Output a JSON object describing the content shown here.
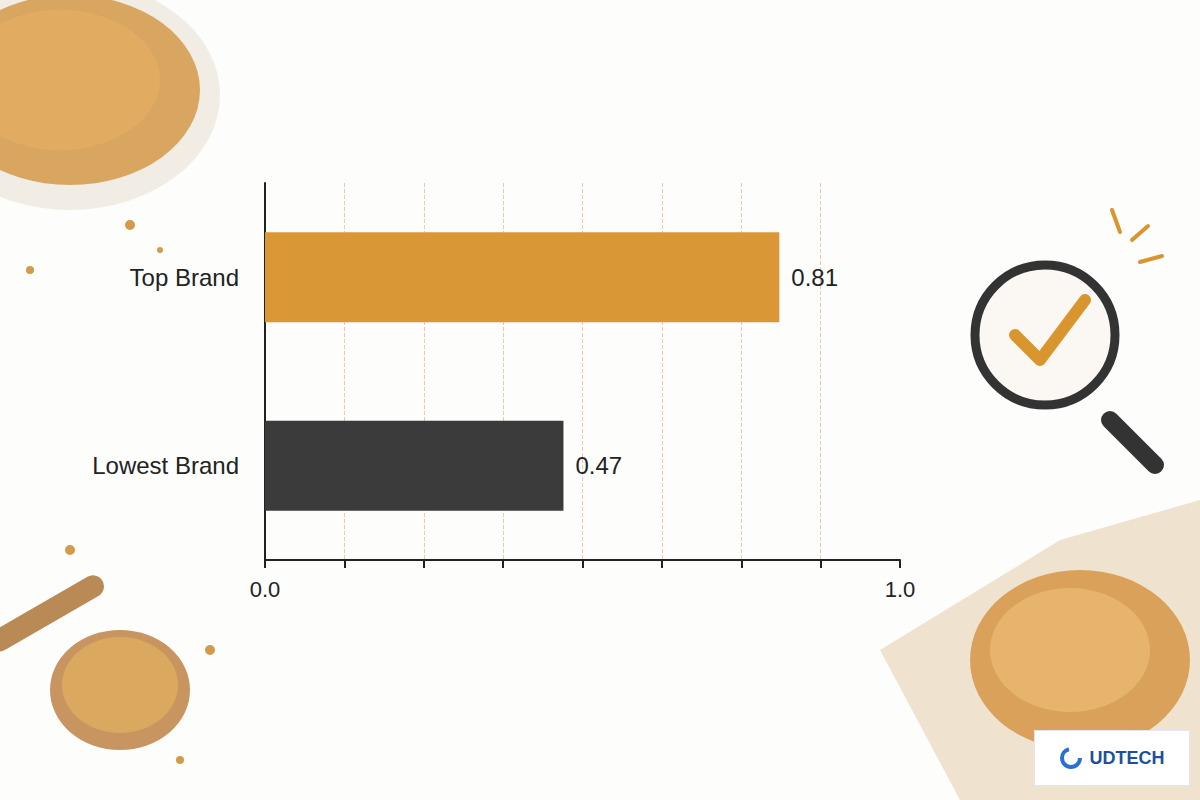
{
  "chart_data": {
    "type": "bar",
    "orientation": "horizontal",
    "categories": [
      "Top Brand",
      "Lowest Brand"
    ],
    "values": [
      0.81,
      0.47
    ],
    "colors": [
      "#DA9736",
      "#3B3B3B"
    ],
    "xlim": [
      0,
      1
    ],
    "xticks": [
      {
        "value": 0,
        "label": "0.0"
      },
      {
        "value": 1,
        "label": "1.0"
      }
    ],
    "grid": true,
    "data_labels": true,
    "annotations": [
      "UDTECH"
    ]
  }
}
